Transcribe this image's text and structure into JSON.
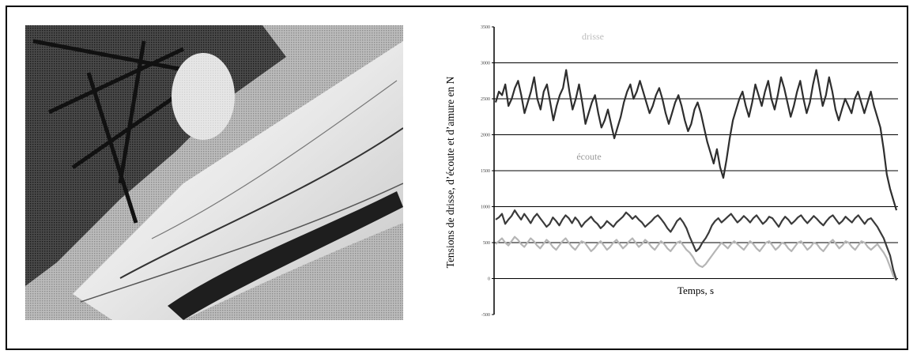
{
  "photo": {
    "alt": "Photographie en niveaux de gris d'une voile et du pont d'un bateau"
  },
  "chart_data": {
    "type": "line",
    "title": "",
    "ylabel": "Tensions de drisse, d’écoute et d’amure en N",
    "xlabel": "Temps, s",
    "ylim": [
      -500,
      3500
    ],
    "yticks": [
      {
        "value": 3500,
        "label": "3500"
      },
      {
        "value": 3000,
        "label": "3000"
      },
      {
        "value": 2500,
        "label": "2500"
      },
      {
        "value": 2000,
        "label": "2000"
      },
      {
        "value": 1500,
        "label": "1500"
      },
      {
        "value": 1000,
        "label": "1000"
      },
      {
        "value": 500,
        "label": "500"
      },
      {
        "value": 0,
        "label": "0"
      },
      {
        "value": -500,
        "label": "-500"
      }
    ],
    "grid": true,
    "series_labels": [
      {
        "text": "drisse",
        "color": "#bdbdbd"
      },
      {
        "text": "écoute",
        "color": "#9a9a9a"
      }
    ],
    "series": [
      {
        "color": "#2e2e2e",
        "values": [
          2450,
          2600,
          2550,
          2700,
          2400,
          2500,
          2650,
          2750,
          2550,
          2300,
          2450,
          2600,
          2800,
          2500,
          2350,
          2600,
          2700,
          2450,
          2200,
          2400,
          2550,
          2650,
          2900,
          2600,
          2350,
          2500,
          2700,
          2450,
          2150,
          2300,
          2450,
          2550,
          2300,
          2100,
          2200,
          2350,
          2150,
          1950,
          2100,
          2250,
          2450,
          2600,
          2700,
          2500,
          2600,
          2750,
          2600,
          2450,
          2300,
          2400,
          2550,
          2650,
          2500,
          2300,
          2150,
          2300,
          2450,
          2550,
          2400,
          2200,
          2050,
          2150,
          2350,
          2450,
          2300,
          2100,
          1900,
          1750,
          1600,
          1800,
          1550,
          1400,
          1650,
          1950,
          2200,
          2350,
          2500,
          2600,
          2400,
          2250,
          2450,
          2700,
          2550,
          2400,
          2600,
          2750,
          2500,
          2350,
          2550,
          2800,
          2650,
          2450,
          2250,
          2400,
          2600,
          2750,
          2500,
          2300,
          2450,
          2700,
          2900,
          2650,
          2400,
          2550,
          2800,
          2600,
          2350,
          2200,
          2350,
          2500,
          2400,
          2300,
          2500,
          2600,
          2450,
          2300,
          2450,
          2600,
          2400,
          2250,
          2100,
          1800,
          1450,
          1250,
          1100,
          950
        ]
      },
      {
        "color": "#3a3a3a",
        "values": [
          820,
          850,
          900,
          760,
          820,
          870,
          950,
          880,
          820,
          900,
          840,
          770,
          850,
          900,
          840,
          780,
          720,
          760,
          850,
          800,
          740,
          820,
          880,
          840,
          770,
          850,
          800,
          720,
          780,
          820,
          860,
          800,
          760,
          700,
          740,
          800,
          760,
          720,
          780,
          820,
          860,
          920,
          880,
          830,
          870,
          820,
          780,
          720,
          760,
          800,
          850,
          880,
          830,
          770,
          700,
          650,
          720,
          800,
          840,
          780,
          700,
          580,
          480,
          380,
          420,
          500,
          560,
          640,
          740,
          800,
          840,
          780,
          820,
          860,
          900,
          840,
          780,
          820,
          870,
          830,
          780,
          840,
          880,
          820,
          760,
          800,
          860,
          840,
          780,
          720,
          800,
          860,
          820,
          760,
          800,
          850,
          880,
          820,
          770,
          820,
          870,
          830,
          780,
          740,
          800,
          850,
          880,
          820,
          760,
          800,
          860,
          820,
          780,
          840,
          880,
          820,
          760,
          820,
          840,
          780,
          720,
          640,
          560,
          440,
          320,
          120,
          -20
        ]
      },
      {
        "color": "#b5b5b5",
        "values": [
          480,
          520,
          560,
          500,
          460,
          520,
          580,
          540,
          480,
          440,
          500,
          560,
          520,
          460,
          420,
          480,
          540,
          500,
          440,
          400,
          460,
          520,
          560,
          500,
          440,
          400,
          460,
          520,
          500,
          440,
          380,
          420,
          480,
          520,
          460,
          400,
          440,
          500,
          540,
          480,
          420,
          460,
          520,
          560,
          500,
          440,
          480,
          540,
          500,
          440,
          400,
          460,
          520,
          480,
          420,
          380,
          440,
          500,
          520,
          460,
          400,
          360,
          300,
          220,
          180,
          160,
          200,
          260,
          320,
          380,
          440,
          500,
          460,
          420,
          480,
          520,
          480,
          440,
          400,
          460,
          520,
          480,
          420,
          380,
          440,
          500,
          520,
          460,
          400,
          440,
          500,
          480,
          420,
          380,
          440,
          500,
          520,
          460,
          400,
          440,
          500,
          480,
          420,
          380,
          440,
          500,
          540,
          480,
          420,
          460,
          520,
          500,
          440,
          400,
          460,
          520,
          500,
          440,
          400,
          440,
          480,
          420,
          360,
          280,
          160,
          40,
          -30
        ]
      }
    ]
  }
}
